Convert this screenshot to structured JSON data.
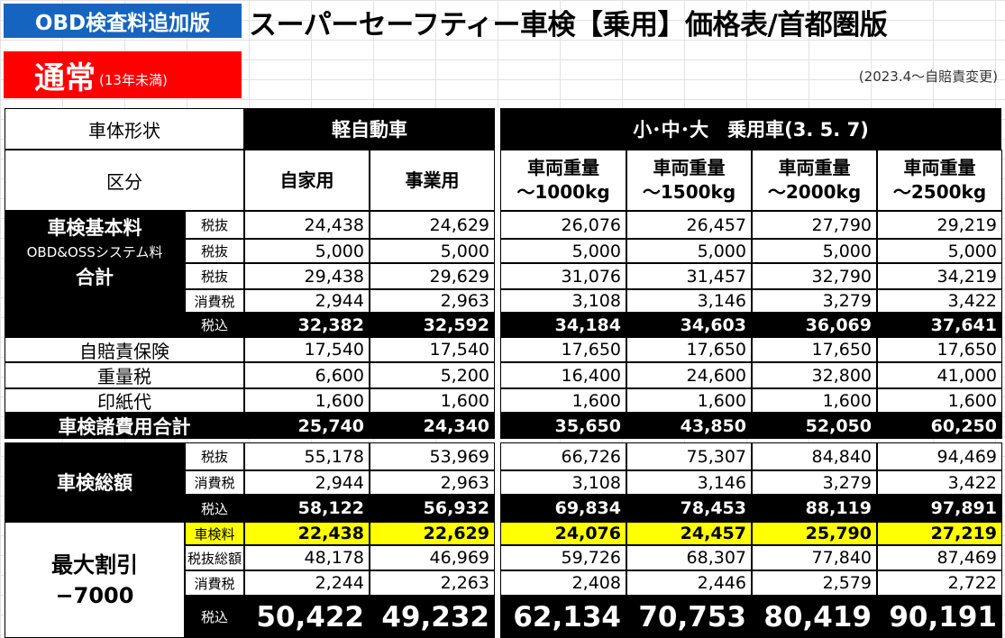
{
  "header": {
    "badge": "OBD検査料追加版",
    "title": "スーパーセーフティー車検【乗用】価格表/首都圏版",
    "normal_main": "通常",
    "normal_sub": "(13年未満)",
    "note": "(2023.4～自賠責変更)"
  },
  "table": {
    "body_type_label": "車体形状",
    "kubun_label": "区分",
    "kei_label": "軽自動車",
    "sho_label": "小･中･大　乗用車(3. 5. 7)",
    "col_heads": [
      [
        "自家用"
      ],
      [
        "事業用"
      ],
      [
        "車両重量",
        "～1000kg"
      ],
      [
        "車両重量",
        "～1500kg"
      ],
      [
        "車両重量",
        "～2000kg"
      ],
      [
        "車両重量",
        "～2500kg"
      ]
    ],
    "group_labels": {
      "kihon": "車検基本料",
      "obd": "OBD&OSSシステム料",
      "gokei": "合計",
      "shohiyo": "車検諸費用合計",
      "sogaku": "車検総額",
      "waribiki_1": "最大割引",
      "waribiki_2": "−7000"
    },
    "rows": [
      {
        "sub": "税抜",
        "vals": [
          "24,438",
          "24,629",
          "26,076",
          "26,457",
          "27,790",
          "29,219"
        ]
      },
      {
        "sub": "税抜",
        "vals": [
          "5,000",
          "5,000",
          "5,000",
          "5,000",
          "5,000",
          "5,000"
        ]
      },
      {
        "sub": "税抜",
        "vals": [
          "29,438",
          "29,629",
          "31,076",
          "31,457",
          "32,790",
          "34,219"
        ]
      },
      {
        "sub": "消費税",
        "vals": [
          "2,944",
          "2,963",
          "3,108",
          "3,146",
          "3,279",
          "3,422"
        ]
      },
      {
        "sub": "税込",
        "vals": [
          "32,382",
          "32,592",
          "34,184",
          "34,603",
          "36,069",
          "37,641"
        ]
      },
      {
        "label": "自賠責保険",
        "vals": [
          "17,540",
          "17,540",
          "17,650",
          "17,650",
          "17,650",
          "17,650"
        ]
      },
      {
        "label": "重量税",
        "vals": [
          "6,600",
          "5,200",
          "16,400",
          "24,600",
          "32,800",
          "41,000"
        ]
      },
      {
        "label": "印紙代",
        "vals": [
          "1,600",
          "1,600",
          "1,600",
          "1,600",
          "1,600",
          "1,600"
        ]
      },
      {
        "vals": [
          "25,740",
          "24,340",
          "35,650",
          "43,850",
          "52,050",
          "60,250"
        ]
      },
      {
        "sub": "税抜",
        "vals": [
          "55,178",
          "53,969",
          "66,726",
          "75,307",
          "84,840",
          "94,469"
        ]
      },
      {
        "sub": "消費税",
        "vals": [
          "2,944",
          "2,963",
          "3,108",
          "3,146",
          "3,279",
          "3,422"
        ]
      },
      {
        "sub": "税込",
        "vals": [
          "58,122",
          "56,932",
          "69,834",
          "78,453",
          "88,119",
          "97,891"
        ]
      },
      {
        "sub": "車検料",
        "vals": [
          "22,438",
          "22,629",
          "24,076",
          "24,457",
          "25,790",
          "27,219"
        ]
      },
      {
        "sub": "税抜総額",
        "vals": [
          "48,178",
          "46,969",
          "59,726",
          "68,307",
          "77,840",
          "87,469"
        ]
      },
      {
        "sub": "消費税",
        "vals": [
          "2,244",
          "2,263",
          "2,408",
          "2,446",
          "2,579",
          "2,722"
        ]
      },
      {
        "sub": "税込",
        "vals": [
          "50,422",
          "49,232",
          "62,134",
          "70,753",
          "80,419",
          "90,191"
        ]
      }
    ]
  }
}
